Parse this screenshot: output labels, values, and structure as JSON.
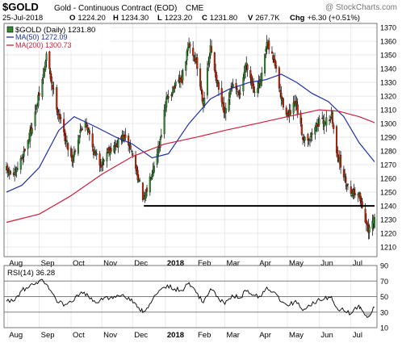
{
  "header": {
    "symbol": "$GOLD",
    "name": "Gold - Continuous Contract (EOD)",
    "exchange": "CME",
    "watermark": "@ StockCharts.com",
    "date": "25-Jul-2018",
    "ohlc": {
      "o_label": "O",
      "o": "1224.20",
      "h_label": "H",
      "h": "1234.30",
      "l_label": "L",
      "l": "1223.20",
      "c_label": "C",
      "c": "1231.80",
      "v_label": "V",
      "v": "267.7K",
      "chg_label": "Chg",
      "chg": "+6.30 (+0.51%)"
    }
  },
  "legend": {
    "price": "$GOLD (Daily) 1231.80",
    "ma50": "MA(50) 1272.09",
    "ma200": "MA(200) 1300.73"
  },
  "colors": {
    "up": "#2e8b2e",
    "down": "#cc2200",
    "wick": "#000000",
    "ma50": "#1c2fa8",
    "ma200": "#cc1f3c",
    "support": "#000000",
    "grid": "#dcdcdc",
    "rsi_line": "#000000",
    "rsi_band": "#808080",
    "rsi_fill": "#bfbfbf"
  },
  "chart_data": [
    {
      "type": "candlestick",
      "title": "$GOLD (Daily)",
      "x_range": [
        "2017-07-31",
        "2018-07-25"
      ],
      "ylim": [
        1203,
        1373
      ],
      "y_ticks": [
        1210,
        1220,
        1230,
        1240,
        1250,
        1260,
        1270,
        1280,
        1290,
        1300,
        1310,
        1320,
        1330,
        1340,
        1350,
        1360,
        1370
      ],
      "x_tick_labels": [
        "Aug",
        "Sep",
        "Oct",
        "Nov",
        "Dec",
        "2018",
        "Feb",
        "Mar",
        "Apr",
        "May",
        "Jun",
        "Jul"
      ],
      "x_tick_dates": [
        "2017-08-01",
        "2017-09-01",
        "2017-10-02",
        "2017-11-01",
        "2017-12-01",
        "2018-01-02",
        "2018-02-01",
        "2018-03-01",
        "2018-04-02",
        "2018-05-01",
        "2018-06-01",
        "2018-07-02"
      ],
      "grid": true,
      "ohlc_last": {
        "o": 1224.2,
        "h": 1234.3,
        "l": 1223.2,
        "c": 1231.8
      },
      "close_path": [
        [
          "2017-07-31",
          1266
        ],
        [
          "2017-08-08",
          1262
        ],
        [
          "2017-08-15",
          1275
        ],
        [
          "2017-08-22",
          1290
        ],
        [
          "2017-08-29",
          1311
        ],
        [
          "2017-09-05",
          1335
        ],
        [
          "2017-09-08",
          1350
        ],
        [
          "2017-09-13",
          1330
        ],
        [
          "2017-09-19",
          1310
        ],
        [
          "2017-09-26",
          1290
        ],
        [
          "2017-10-03",
          1274
        ],
        [
          "2017-10-10",
          1292
        ],
        [
          "2017-10-16",
          1303
        ],
        [
          "2017-10-24",
          1280
        ],
        [
          "2017-10-31",
          1270
        ],
        [
          "2017-11-07",
          1281
        ],
        [
          "2017-11-14",
          1283
        ],
        [
          "2017-11-21",
          1290
        ],
        [
          "2017-11-28",
          1285
        ],
        [
          "2017-12-05",
          1265
        ],
        [
          "2017-12-12",
          1243
        ],
        [
          "2017-12-19",
          1263
        ],
        [
          "2017-12-27",
          1285
        ],
        [
          "2018-01-03",
          1317
        ],
        [
          "2018-01-10",
          1326
        ],
        [
          "2018-01-18",
          1332
        ],
        [
          "2018-01-25",
          1358
        ],
        [
          "2018-02-01",
          1345
        ],
        [
          "2018-02-08",
          1315
        ],
        [
          "2018-02-15",
          1355
        ],
        [
          "2018-02-22",
          1328
        ],
        [
          "2018-03-01",
          1305
        ],
        [
          "2018-03-08",
          1328
        ],
        [
          "2018-03-15",
          1320
        ],
        [
          "2018-03-22",
          1345
        ],
        [
          "2018-03-29",
          1325
        ],
        [
          "2018-04-05",
          1330
        ],
        [
          "2018-04-11",
          1358
        ],
        [
          "2018-04-18",
          1346
        ],
        [
          "2018-04-25",
          1318
        ],
        [
          "2018-05-02",
          1305
        ],
        [
          "2018-05-09",
          1315
        ],
        [
          "2018-05-16",
          1290
        ],
        [
          "2018-05-23",
          1290
        ],
        [
          "2018-05-30",
          1300
        ],
        [
          "2018-06-06",
          1302
        ],
        [
          "2018-06-13",
          1305
        ],
        [
          "2018-06-18",
          1280
        ],
        [
          "2018-06-25",
          1262
        ],
        [
          "2018-07-02",
          1250
        ],
        [
          "2018-07-09",
          1250
        ],
        [
          "2018-07-13",
          1240
        ],
        [
          "2018-07-19",
          1220
        ],
        [
          "2018-07-25",
          1231.8
        ]
      ],
      "support_line": {
        "from": "2017-12-12",
        "to": "2018-07-25",
        "value": 1240
      },
      "series": [
        {
          "name": "MA(50)",
          "values": [
            [
              "2017-07-31",
              1250
            ],
            [
              "2017-08-15",
              1255
            ],
            [
              "2017-09-01",
              1268
            ],
            [
              "2017-09-20",
              1295
            ],
            [
              "2017-10-05",
              1305
            ],
            [
              "2017-10-25",
              1298
            ],
            [
              "2017-11-15",
              1290
            ],
            [
              "2017-12-01",
              1285
            ],
            [
              "2017-12-20",
              1275
            ],
            [
              "2018-01-05",
              1278
            ],
            [
              "2018-01-25",
              1300
            ],
            [
              "2018-02-15",
              1318
            ],
            [
              "2018-03-05",
              1325
            ],
            [
              "2018-03-25",
              1330
            ],
            [
              "2018-04-10",
              1332
            ],
            [
              "2018-04-25",
              1336
            ],
            [
              "2018-05-10",
              1330
            ],
            [
              "2018-05-25",
              1322
            ],
            [
              "2018-06-10",
              1316
            ],
            [
              "2018-06-25",
              1305
            ],
            [
              "2018-07-10",
              1286
            ],
            [
              "2018-07-25",
              1272.09
            ]
          ]
        },
        {
          "name": "MA(200)",
          "values": [
            [
              "2017-07-31",
              1228
            ],
            [
              "2017-09-01",
              1234
            ],
            [
              "2017-10-01",
              1247
            ],
            [
              "2017-11-01",
              1263
            ],
            [
              "2017-12-01",
              1276
            ],
            [
              "2018-01-01",
              1285
            ],
            [
              "2018-02-01",
              1290
            ],
            [
              "2018-03-01",
              1295
            ],
            [
              "2018-04-01",
              1300
            ],
            [
              "2018-05-01",
              1305
            ],
            [
              "2018-06-01",
              1310
            ],
            [
              "2018-06-20",
              1309
            ],
            [
              "2018-07-10",
              1305
            ],
            [
              "2018-07-25",
              1300.73
            ]
          ]
        }
      ]
    },
    {
      "type": "line",
      "title": "RSI(14)",
      "value_label": "36.28",
      "ylim": [
        10,
        90
      ],
      "y_ticks": [
        10,
        30,
        50,
        70,
        90
      ],
      "bands": [
        30,
        50,
        70
      ],
      "x_tick_labels": [
        "Aug",
        "Sep",
        "Oct",
        "Nov",
        "Dec",
        "2018",
        "Feb",
        "Mar",
        "Apr",
        "May",
        "Jun",
        "Jul"
      ],
      "series": [
        {
          "name": "RSI(14)",
          "values": [
            [
              "2017-07-31",
              44
            ],
            [
              "2017-08-08",
              45
            ],
            [
              "2017-08-15",
              58
            ],
            [
              "2017-08-22",
              62
            ],
            [
              "2017-08-29",
              68
            ],
            [
              "2017-09-05",
              70
            ],
            [
              "2017-09-12",
              58
            ],
            [
              "2017-09-20",
              42
            ],
            [
              "2017-09-28",
              40
            ],
            [
              "2017-10-05",
              45
            ],
            [
              "2017-10-12",
              56
            ],
            [
              "2017-10-19",
              50
            ],
            [
              "2017-10-26",
              42
            ],
            [
              "2017-11-02",
              46
            ],
            [
              "2017-11-09",
              48
            ],
            [
              "2017-11-16",
              52
            ],
            [
              "2017-11-23",
              50
            ],
            [
              "2017-11-30",
              47
            ],
            [
              "2017-12-07",
              36
            ],
            [
              "2017-12-12",
              31
            ],
            [
              "2017-12-19",
              42
            ],
            [
              "2017-12-27",
              58
            ],
            [
              "2018-01-04",
              65
            ],
            [
              "2018-01-11",
              60
            ],
            [
              "2018-01-18",
              58
            ],
            [
              "2018-01-25",
              68
            ],
            [
              "2018-02-01",
              55
            ],
            [
              "2018-02-08",
              42
            ],
            [
              "2018-02-15",
              60
            ],
            [
              "2018-02-22",
              50
            ],
            [
              "2018-03-01",
              40
            ],
            [
              "2018-03-08",
              52
            ],
            [
              "2018-03-15",
              48
            ],
            [
              "2018-03-22",
              57
            ],
            [
              "2018-03-29",
              52
            ],
            [
              "2018-04-05",
              50
            ],
            [
              "2018-04-11",
              62
            ],
            [
              "2018-04-18",
              56
            ],
            [
              "2018-04-25",
              43
            ],
            [
              "2018-05-02",
              38
            ],
            [
              "2018-05-09",
              45
            ],
            [
              "2018-05-16",
              32
            ],
            [
              "2018-05-23",
              38
            ],
            [
              "2018-05-30",
              45
            ],
            [
              "2018-06-06",
              47
            ],
            [
              "2018-06-13",
              50
            ],
            [
              "2018-06-18",
              36
            ],
            [
              "2018-06-25",
              32
            ],
            [
              "2018-07-02",
              28
            ],
            [
              "2018-07-09",
              38
            ],
            [
              "2018-07-13",
              32
            ],
            [
              "2018-07-19",
              24
            ],
            [
              "2018-07-25",
              36.28
            ]
          ]
        }
      ]
    }
  ]
}
